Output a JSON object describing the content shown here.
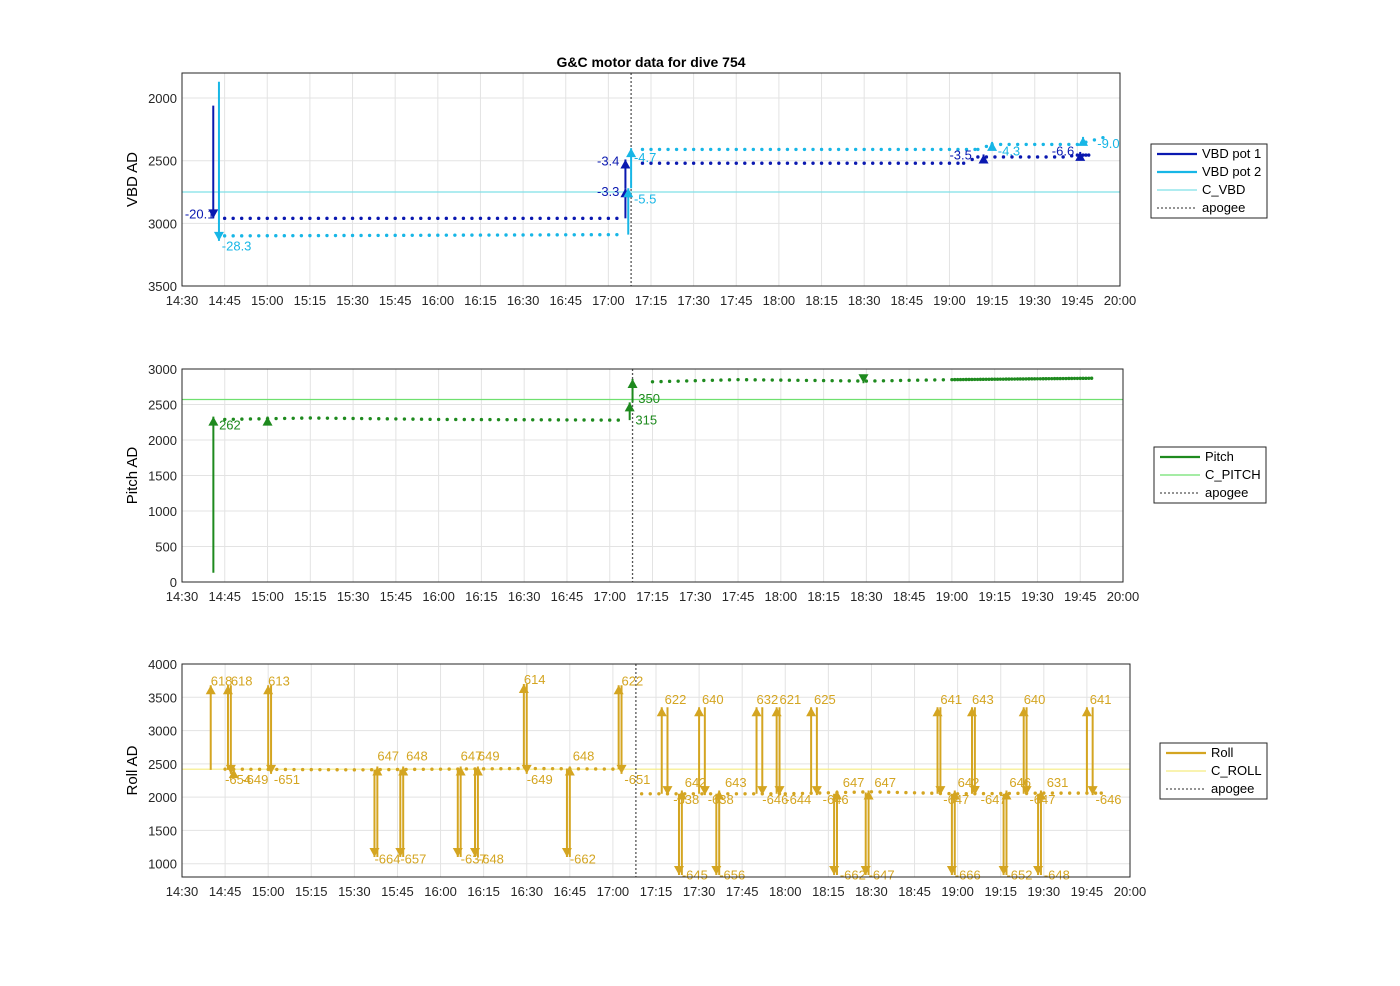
{
  "title": "G&C motor data for dive 754",
  "chart_data": [
    {
      "type": "scatter",
      "name": "vbd",
      "ylabel": "VBD AD",
      "xlim": [
        "14:30",
        "20:00"
      ],
      "ylim": [
        1800,
        3500
      ],
      "y_reversed": true,
      "yticks": [
        2000,
        2500,
        3000,
        3500
      ],
      "xticklabels": [
        "14:30",
        "14:45",
        "15:00",
        "15:15",
        "15:30",
        "15:45",
        "16:00",
        "16:15",
        "16:30",
        "16:45",
        "17:00",
        "17:15",
        "17:30",
        "17:45",
        "18:00",
        "18:15",
        "18:30",
        "18:45",
        "19:00",
        "19:15",
        "19:30",
        "19:45",
        "20:00"
      ],
      "grid": true,
      "apogee": "17:08",
      "hlines": [
        {
          "name": "C_VBD",
          "y": 2750,
          "color": "#7fe0e8"
        }
      ],
      "series": [
        {
          "name": "VBD pot 1",
          "color": "#0a18b0",
          "points": [
            [
              "14:45",
              2960
            ],
            [
              "17:05",
              2960
            ],
            [
              "17:12",
              2520
            ],
            [
              "19:05",
              2520
            ],
            [
              "19:10",
              2470
            ],
            [
              "19:40",
              2470
            ],
            [
              "19:45",
              2455
            ],
            [
              "19:50",
              2455
            ]
          ]
        },
        {
          "name": "VBD pot 2",
          "color": "#17b6e6",
          "points": [
            [
              "14:45",
              3100
            ],
            [
              "17:05",
              3090
            ],
            [
              "17:12",
              2410
            ],
            [
              "19:10",
              2410
            ],
            [
              "19:15",
              2370
            ],
            [
              "19:45",
              2370
            ],
            [
              "19:55",
              2310
            ]
          ]
        }
      ],
      "arrows": [
        {
          "series": 0,
          "x": "14:41",
          "y0": 2060,
          "y1": 2960,
          "label": "-20.1",
          "lx": "14:31",
          "ly": 2960
        },
        {
          "series": 1,
          "x": "14:43",
          "y0": 1870,
          "y1": 3140,
          "label": "-28.3",
          "lx": "14:44",
          "ly": 3215
        },
        {
          "series": 0,
          "x": "17:06",
          "y0": 2960,
          "y1": 2720,
          "label": "-3.3",
          "lx": "16:56",
          "ly": 2780
        },
        {
          "series": 0,
          "x": "17:06",
          "y0": 2720,
          "y1": 2490,
          "label": "-3.4",
          "lx": "16:56",
          "ly": 2540
        },
        {
          "series": 1,
          "x": "17:07",
          "y0": 3090,
          "y1": 2720,
          "label": "-5.5",
          "lx": "17:09",
          "ly": 2840
        },
        {
          "series": 1,
          "x": "17:08",
          "y0": 2720,
          "y1": 2400,
          "label": "-4.7",
          "lx": "17:09",
          "ly": 2510
        },
        {
          "series": 0,
          "x": "19:12",
          "y0": 2520,
          "y1": 2450,
          "label": "-3.5",
          "lx": "19:00",
          "ly": 2490
        },
        {
          "series": 1,
          "x": "19:15",
          "y0": 2410,
          "y1": 2350,
          "label": "-4.3",
          "lx": "19:17",
          "ly": 2460
        },
        {
          "series": 0,
          "x": "19:46",
          "y0": 2470,
          "y1": 2430,
          "label": "-6.6",
          "lx": "19:36",
          "ly": 2460
        },
        {
          "series": 1,
          "x": "19:47",
          "y0": 2370,
          "y1": 2310,
          "label": "-9.0",
          "lx": "19:52",
          "ly": 2400
        }
      ]
    },
    {
      "type": "scatter",
      "name": "pitch",
      "ylabel": "Pitch AD",
      "xlim": [
        "14:30",
        "20:00"
      ],
      "ylim": [
        0,
        3000
      ],
      "yticks": [
        0,
        500,
        1000,
        1500,
        2000,
        2500,
        3000
      ],
      "xticklabels": [
        "14:30",
        "14:45",
        "15:00",
        "15:15",
        "15:30",
        "15:45",
        "16:00",
        "16:15",
        "16:30",
        "16:45",
        "17:00",
        "17:15",
        "17:30",
        "17:45",
        "18:00",
        "18:15",
        "18:30",
        "18:45",
        "19:00",
        "19:15",
        "19:30",
        "19:45",
        "20:00"
      ],
      "grid": true,
      "apogee": "17:08",
      "hlines": [
        {
          "name": "C_PITCH",
          "y": 2570,
          "color": "#6fe06f"
        }
      ],
      "series": [
        {
          "name": "Pitch",
          "color": "#1e8a1e",
          "points": [
            [
              "14:45",
              2290
            ],
            [
              "15:15",
              2310
            ],
            [
              "16:00",
              2290
            ],
            [
              "17:05",
              2280
            ],
            [
              "17:15",
              2820
            ],
            [
              "17:45",
              2850
            ],
            [
              "18:30",
              2830
            ],
            [
              "19:00",
              2850
            ],
            [
              "19:50",
              2870
            ]
          ]
        }
      ],
      "arrows": [
        {
          "series": 0,
          "x": "14:41",
          "y0": 130,
          "y1": 2330,
          "label": "262",
          "lx": "14:43",
          "ly": 2150
        },
        {
          "series": 0,
          "x": "15:00",
          "y0": 2300,
          "y1": 2330,
          "label": "",
          "lx": "15:00",
          "ly": 2330
        },
        {
          "series": 0,
          "x": "17:07",
          "y0": 2280,
          "y1": 2530,
          "label": "315",
          "lx": "17:09",
          "ly": 2220
        },
        {
          "series": 0,
          "x": "17:08",
          "y0": 2530,
          "y1": 2860,
          "label": "350",
          "lx": "17:10",
          "ly": 2520
        },
        {
          "series": 0,
          "x": "18:29",
          "y0": 2870,
          "y1": 2800,
          "label": "",
          "lx": "18:29",
          "ly": 2800
        }
      ]
    },
    {
      "type": "scatter",
      "name": "roll",
      "ylabel": "Roll AD",
      "xlim": [
        "14:30",
        "20:00"
      ],
      "ylim": [
        800,
        4000
      ],
      "yticks": [
        1000,
        1500,
        2000,
        2500,
        3000,
        3500,
        4000
      ],
      "xticklabels": [
        "14:30",
        "14:45",
        "15:00",
        "15:15",
        "15:30",
        "15:45",
        "16:00",
        "16:15",
        "16:30",
        "16:45",
        "17:00",
        "17:15",
        "17:30",
        "17:45",
        "18:00",
        "18:15",
        "18:30",
        "18:45",
        "19:00",
        "19:15",
        "19:30",
        "19:45",
        "20:00"
      ],
      "grid": true,
      "apogee": "17:08",
      "hlines": [
        {
          "name": "C_ROLL",
          "y": 2420,
          "color": "#f5ec80"
        }
      ],
      "series": [
        {
          "name": "Roll",
          "color": "#d4a521",
          "points": [
            [
              "14:45",
              2420
            ],
            [
              "15:30",
              2410
            ],
            [
              "16:30",
              2430
            ],
            [
              "17:05",
              2420
            ],
            [
              "17:10",
              2050
            ],
            [
              "18:00",
              2050
            ],
            [
              "18:30",
              2080
            ],
            [
              "19:00",
              2050
            ],
            [
              "19:30",
              2060
            ],
            [
              "19:50",
              2060
            ],
            [
              "19:53",
              2030
            ]
          ]
        }
      ],
      "arrows": [
        {
          "x": "14:40",
          "y0": 2410,
          "y1": 3680,
          "label": "618",
          "lx": "14:40",
          "ly": 3680
        },
        {
          "x": "14:46",
          "y0": 2410,
          "y1": 3680,
          "label": "618",
          "lx": "14:47",
          "ly": 3680
        },
        {
          "x": "14:47",
          "y0": 3680,
          "y1": 2350,
          "label": "-654",
          "lx": "14:45",
          "ly": 2200
        },
        {
          "x": "14:48",
          "y0": 2350,
          "y1": 2420,
          "label": "-649",
          "lx": "14:51",
          "ly": 2200
        },
        {
          "x": "15:00",
          "y0": 2410,
          "y1": 3680,
          "label": "613",
          "lx": "15:00",
          "ly": 3680
        },
        {
          "x": "15:01",
          "y0": 3680,
          "y1": 2350,
          "label": "-651",
          "lx": "15:02",
          "ly": 2200
        },
        {
          "x": "15:37",
          "y0": 2410,
          "y1": 1100,
          "label": "-664",
          "lx": "15:37",
          "ly": 1000
        },
        {
          "x": "15:38",
          "y0": 1100,
          "y1": 2460,
          "label": "647",
          "lx": "15:38",
          "ly": 2550
        },
        {
          "x": "15:46",
          "y0": 2410,
          "y1": 1100,
          "label": "-657",
          "lx": "15:46",
          "ly": 1000
        },
        {
          "x": "15:47",
          "y0": 1100,
          "y1": 2460,
          "label": "648",
          "lx": "15:48",
          "ly": 2550
        },
        {
          "x": "16:06",
          "y0": 2420,
          "y1": 1100,
          "label": "-637",
          "lx": "16:07",
          "ly": 1000
        },
        {
          "x": "16:07",
          "y0": 1100,
          "y1": 2460,
          "label": "647",
          "lx": "16:07",
          "ly": 2550
        },
        {
          "x": "16:12",
          "y0": 2420,
          "y1": 1100,
          "label": "-648",
          "lx": "16:13",
          "ly": 1000
        },
        {
          "x": "16:13",
          "y0": 1100,
          "y1": 2460,
          "label": "649",
          "lx": "16:13",
          "ly": 2550
        },
        {
          "x": "16:29",
          "y0": 2430,
          "y1": 3700,
          "label": "614",
          "lx": "16:29",
          "ly": 3700
        },
        {
          "x": "16:30",
          "y0": 3700,
          "y1": 2350,
          "label": "-649",
          "lx": "16:30",
          "ly": 2200
        },
        {
          "x": "16:44",
          "y0": 2430,
          "y1": 1100,
          "label": "-662",
          "lx": "16:45",
          "ly": 1000
        },
        {
          "x": "16:45",
          "y0": 1100,
          "y1": 2460,
          "label": "648",
          "lx": "16:46",
          "ly": 2550
        },
        {
          "x": "17:02",
          "y0": 2420,
          "y1": 3680,
          "label": "622",
          "lx": "17:03",
          "ly": 3680
        },
        {
          "x": "17:03",
          "y0": 3680,
          "y1": 2350,
          "label": "-651",
          "lx": "17:04",
          "ly": 2200
        },
        {
          "x": "17:17",
          "y0": 2050,
          "y1": 3350,
          "label": "622",
          "lx": "17:18",
          "ly": 3400
        },
        {
          "x": "17:19",
          "y0": 3350,
          "y1": 2030,
          "label": "-638",
          "lx": "17:21",
          "ly": 1900
        },
        {
          "x": "17:23",
          "y0": 2050,
          "y1": 830,
          "label": "-645",
          "lx": "17:24",
          "ly": 760
        },
        {
          "x": "17:24",
          "y0": 830,
          "y1": 2100,
          "label": "642",
          "lx": "17:25",
          "ly": 2150
        },
        {
          "x": "17:30",
          "y0": 2050,
          "y1": 3350,
          "label": "640",
          "lx": "17:31",
          "ly": 3400
        },
        {
          "x": "17:32",
          "y0": 3350,
          "y1": 2030,
          "label": "-638",
          "lx": "17:33",
          "ly": 1900
        },
        {
          "x": "17:36",
          "y0": 2050,
          "y1": 830,
          "label": "-656",
          "lx": "17:37",
          "ly": 760
        },
        {
          "x": "17:37",
          "y0": 830,
          "y1": 2100,
          "label": "643",
          "lx": "17:39",
          "ly": 2150
        },
        {
          "x": "17:50",
          "y0": 2050,
          "y1": 3350,
          "label": "632",
          "lx": "17:50",
          "ly": 3400
        },
        {
          "x": "17:52",
          "y0": 3350,
          "y1": 2030,
          "label": "-646",
          "lx": "17:52",
          "ly": 1900
        },
        {
          "x": "17:57",
          "y0": 2050,
          "y1": 3350,
          "label": "621",
          "lx": "17:58",
          "ly": 3400
        },
        {
          "x": "17:58",
          "y0": 3350,
          "y1": 2030,
          "label": "-644",
          "lx": "18:00",
          "ly": 1900
        },
        {
          "x": "18:09",
          "y0": 2050,
          "y1": 3350,
          "label": "625",
          "lx": "18:10",
          "ly": 3400
        },
        {
          "x": "18:11",
          "y0": 3350,
          "y1": 2030,
          "label": "-646",
          "lx": "18:13",
          "ly": 1900
        },
        {
          "x": "18:17",
          "y0": 2050,
          "y1": 830,
          "label": "-662",
          "lx": "18:19",
          "ly": 760
        },
        {
          "x": "18:18",
          "y0": 830,
          "y1": 2100,
          "label": "647",
          "lx": "18:20",
          "ly": 2150
        },
        {
          "x": "18:28",
          "y0": 2070,
          "y1": 830,
          "label": "-647",
          "lx": "18:29",
          "ly": 760
        },
        {
          "x": "18:29",
          "y0": 830,
          "y1": 2100,
          "label": "647",
          "lx": "18:31",
          "ly": 2150
        },
        {
          "x": "18:53",
          "y0": 2050,
          "y1": 3350,
          "label": "641",
          "lx": "18:54",
          "ly": 3400
        },
        {
          "x": "18:54",
          "y0": 3350,
          "y1": 2030,
          "label": "-647",
          "lx": "18:55",
          "ly": 1900
        },
        {
          "x": "18:58",
          "y0": 2050,
          "y1": 830,
          "label": "-666",
          "lx": "18:59",
          "ly": 760
        },
        {
          "x": "18:59",
          "y0": 830,
          "y1": 2100,
          "label": "642",
          "lx": "19:00",
          "ly": 2150
        },
        {
          "x": "19:05",
          "y0": 2050,
          "y1": 3350,
          "label": "643",
          "lx": "19:05",
          "ly": 3400
        },
        {
          "x": "19:06",
          "y0": 3350,
          "y1": 2030,
          "label": "-647",
          "lx": "19:08",
          "ly": 1900
        },
        {
          "x": "19:16",
          "y0": 2050,
          "y1": 830,
          "label": "-652",
          "lx": "19:17",
          "ly": 760
        },
        {
          "x": "19:17",
          "y0": 830,
          "y1": 2100,
          "label": "646",
          "lx": "19:18",
          "ly": 2150
        },
        {
          "x": "19:23",
          "y0": 2050,
          "y1": 3350,
          "label": "640",
          "lx": "19:23",
          "ly": 3400
        },
        {
          "x": "19:24",
          "y0": 3350,
          "y1": 2030,
          "label": "-647",
          "lx": "19:25",
          "ly": 1900
        },
        {
          "x": "19:28",
          "y0": 2050,
          "y1": 830,
          "label": "-648",
          "lx": "19:30",
          "ly": 760
        },
        {
          "x": "19:29",
          "y0": 830,
          "y1": 2100,
          "label": "631",
          "lx": "19:31",
          "ly": 2150
        },
        {
          "x": "19:45",
          "y0": 2050,
          "y1": 3350,
          "label": "641",
          "lx": "19:46",
          "ly": 3400
        },
        {
          "x": "19:47",
          "y0": 3350,
          "y1": 2030,
          "label": "-646",
          "lx": "19:48",
          "ly": 1900
        }
      ]
    }
  ]
}
